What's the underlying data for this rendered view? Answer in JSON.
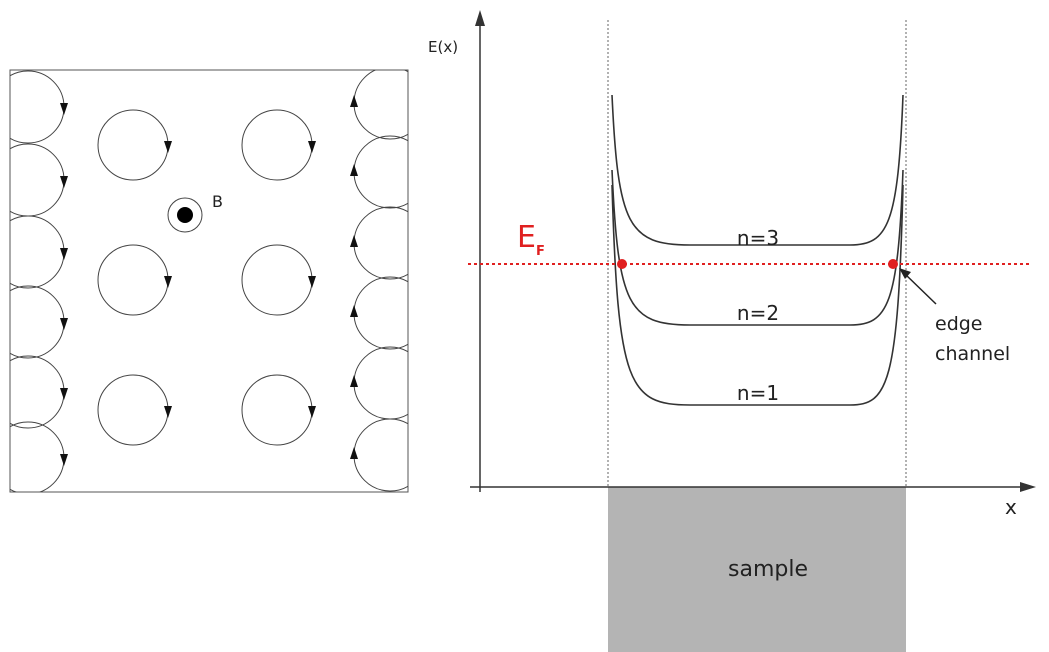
{
  "left_panel": {
    "field_label": "B"
  },
  "right_panel": {
    "axis_y_label": "E(x)",
    "axis_x_label": "x",
    "fermi_level": {
      "symbol": "E",
      "subscript": "F"
    },
    "levels": [
      "n=3",
      "n=2",
      "n=1"
    ],
    "edge_label": [
      "edge",
      "channel"
    ],
    "sample_label": "sample"
  }
}
